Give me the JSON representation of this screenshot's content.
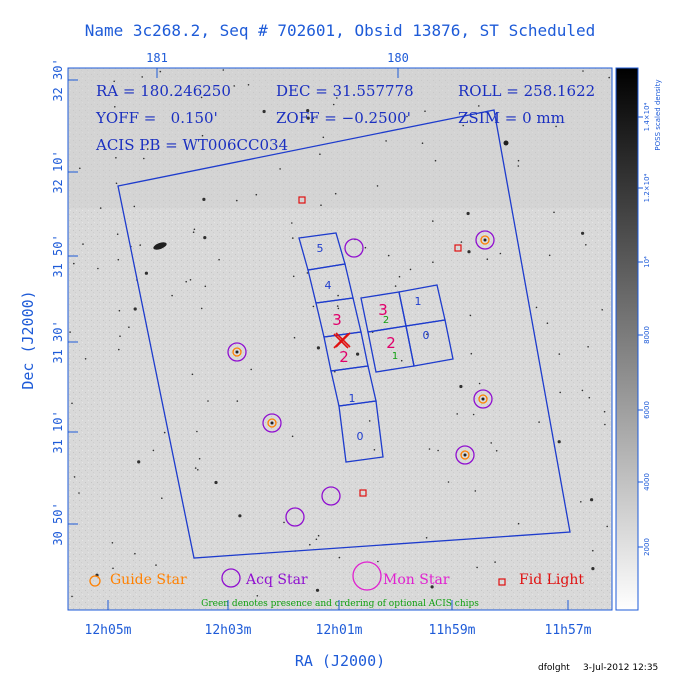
{
  "header": {
    "title": "Name 3c268.2, Seq # 702601, Obsid 13876, ST Scheduled",
    "line1": [
      "RA = 180.246250",
      "DEC = 31.557778",
      "ROLL = 258.1622"
    ],
    "line2": [
      "YOFF =   0.150'",
      "ZOFF = −0.2500'",
      "ZSIM = 0 mm"
    ],
    "line3": "ACIS PB = WT006CC034"
  },
  "chart_data": {
    "type": "scatter",
    "xlabel": "RA (J2000)",
    "ylabel": "Dec (J2000)",
    "x_ticks_bottom": [
      "12h05m",
      "12h03m",
      "12h01m",
      "11h59m",
      "11h57m"
    ],
    "x_ticks_top": [
      "181",
      "180"
    ],
    "y_ticks": [
      "32 30'",
      "32 10'",
      "31 50'",
      "31 30'",
      "31 10'",
      "30 50'"
    ],
    "colorbar": {
      "label": "POSS scaled density",
      "ticks": [
        "2000",
        "4000",
        "6000",
        "8000",
        "10⁴",
        "1.2×10⁴",
        "1.4×10⁴"
      ]
    },
    "acis_chips": {
      "i_array": [
        {
          "label": "3",
          "color": "#e0006b"
        },
        {
          "label": "1",
          "color": "#1e3ccd"
        },
        {
          "label": "2",
          "color": "#e0006b"
        },
        {
          "label": "0",
          "color": "#1e3ccd"
        }
      ],
      "i_array_optional": [
        "2",
        "1"
      ],
      "s_array": [
        "5",
        "4",
        "3",
        "2",
        "1",
        "0"
      ]
    },
    "legend": [
      {
        "label": "Guide Star",
        "color": "#ff8000"
      },
      {
        "label": "Acq Star",
        "color": "#9010d0"
      },
      {
        "label": "Mon Star",
        "color": "#e020d0"
      },
      {
        "label": "Fid Light",
        "color": "#e01010"
      }
    ],
    "note": "Green denotes presence and ordering of optional ACIS chips"
  },
  "footer": {
    "user": "dfolght",
    "date": "3-Jul-2012 12:35"
  },
  "colors": {
    "axis": "#1e5bd8",
    "guide": "#ff8000",
    "acq": "#9010d0",
    "fid": "#e01010",
    "green": "#10a010"
  }
}
